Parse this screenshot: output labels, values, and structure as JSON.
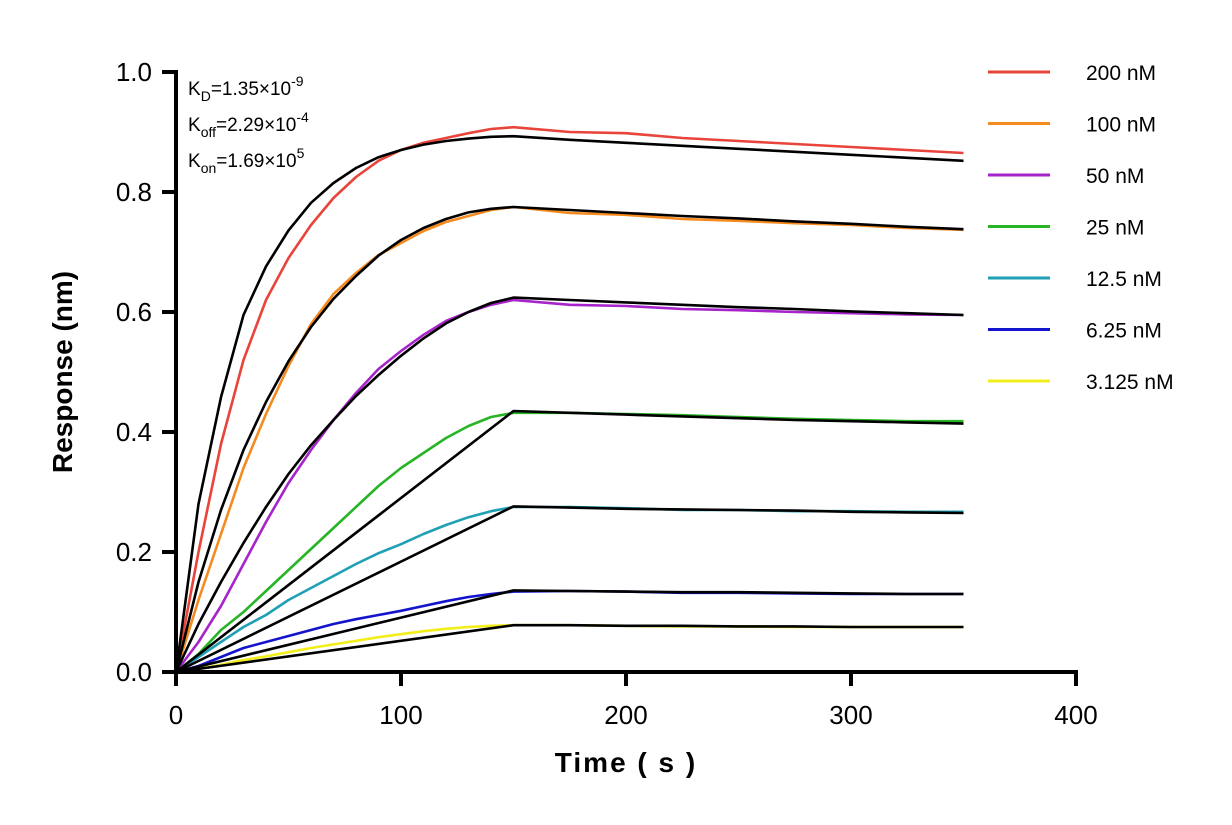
{
  "chart_data": {
    "type": "line",
    "title": "",
    "xlabel": "Time ( s )",
    "ylabel": "Response (nm)",
    "xlim": [
      0,
      400
    ],
    "ylim": [
      0,
      1.0
    ],
    "x_ticks": [
      0,
      100,
      200,
      300,
      400
    ],
    "x_tick_labels": [
      "0",
      "100",
      "200",
      "300",
      "400"
    ],
    "y_ticks": [
      0,
      0.2,
      0.4,
      0.6,
      0.8,
      1.0
    ],
    "y_tick_labels": [
      "0.0",
      "0.2",
      "0.4",
      "0.6",
      "0.8",
      "1.0"
    ],
    "grid": false,
    "legend_position": "right",
    "annotations": [
      {
        "base": "K",
        "sub": "D",
        "rest": "=1.35×10",
        "sup": "-9"
      },
      {
        "base": "K",
        "sub": "off",
        "rest": "=2.29×10",
        "sup": "-4"
      },
      {
        "base": "K",
        "sub": "on",
        "rest": "=1.69×10",
        "sup": "5"
      }
    ],
    "fit_color": "#000000",
    "fit_series": [
      {
        "x": [
          0,
          10,
          20,
          30,
          40,
          50,
          60,
          70,
          80,
          90,
          100,
          110,
          120,
          130,
          140,
          150,
          175,
          200,
          225,
          250,
          275,
          300,
          325,
          350
        ],
        "values": [
          0,
          0.28,
          0.458,
          0.595,
          0.676,
          0.736,
          0.782,
          0.815,
          0.84,
          0.858,
          0.87,
          0.879,
          0.885,
          0.889,
          0.892,
          0.893,
          0.887,
          0.882,
          0.877,
          0.872,
          0.867,
          0.862,
          0.857,
          0.852
        ]
      },
      {
        "x": [
          0,
          10,
          20,
          30,
          40,
          50,
          60,
          70,
          80,
          90,
          100,
          110,
          120,
          130,
          140,
          150,
          175,
          200,
          225,
          250,
          275,
          300,
          325,
          350
        ],
        "values": [
          0,
          0.15,
          0.27,
          0.37,
          0.45,
          0.518,
          0.575,
          0.622,
          0.66,
          0.694,
          0.72,
          0.74,
          0.755,
          0.766,
          0.772,
          0.775,
          0.77,
          0.765,
          0.76,
          0.756,
          0.751,
          0.747,
          0.742,
          0.738
        ]
      },
      {
        "x": [
          0,
          10,
          20,
          30,
          40,
          50,
          60,
          70,
          80,
          90,
          100,
          110,
          120,
          130,
          140,
          150,
          175,
          200,
          225,
          250,
          275,
          300,
          325,
          350
        ],
        "values": [
          0,
          0.08,
          0.15,
          0.215,
          0.275,
          0.33,
          0.378,
          0.42,
          0.46,
          0.495,
          0.527,
          0.556,
          0.581,
          0.6,
          0.615,
          0.624,
          0.62,
          0.616,
          0.612,
          0.608,
          0.605,
          0.601,
          0.598,
          0.595
        ]
      },
      {
        "x": [
          0,
          150,
          175,
          200,
          225,
          250,
          275,
          300,
          325,
          350
        ],
        "values": [
          0,
          0.435,
          0.432,
          0.429,
          0.426,
          0.423,
          0.42,
          0.418,
          0.416,
          0.414
        ]
      },
      {
        "x": [
          0,
          150,
          175,
          200,
          225,
          250,
          275,
          300,
          325,
          350
        ],
        "values": [
          0,
          0.276,
          0.274,
          0.272,
          0.271,
          0.27,
          0.269,
          0.267,
          0.266,
          0.265
        ]
      },
      {
        "x": [
          0,
          150,
          175,
          200,
          225,
          250,
          275,
          300,
          325,
          350
        ],
        "values": [
          0,
          0.136,
          0.135,
          0.134,
          0.133,
          0.133,
          0.132,
          0.131,
          0.13,
          0.13
        ]
      },
      {
        "x": [
          0,
          150,
          175,
          200,
          225,
          250,
          275,
          300,
          325,
          350
        ],
        "values": [
          0,
          0.078,
          0.078,
          0.077,
          0.077,
          0.076,
          0.076,
          0.075,
          0.075,
          0.075
        ]
      }
    ],
    "series": [
      {
        "name": "200 nM",
        "color": "#E8443A",
        "x": [
          0,
          10,
          20,
          30,
          40,
          50,
          60,
          70,
          80,
          90,
          100,
          110,
          120,
          130,
          140,
          150,
          175,
          200,
          225,
          250,
          275,
          300,
          325,
          350
        ],
        "values": [
          0,
          0.2,
          0.38,
          0.52,
          0.62,
          0.69,
          0.745,
          0.79,
          0.825,
          0.852,
          0.87,
          0.882,
          0.89,
          0.898,
          0.905,
          0.908,
          0.9,
          0.898,
          0.89,
          0.885,
          0.88,
          0.875,
          0.87,
          0.865
        ]
      },
      {
        "name": "100 nM",
        "color": "#F58A1F",
        "x": [
          0,
          10,
          20,
          30,
          40,
          50,
          60,
          70,
          80,
          90,
          100,
          110,
          120,
          130,
          140,
          150,
          175,
          200,
          225,
          250,
          275,
          300,
          325,
          350
        ],
        "values": [
          0,
          0.12,
          0.23,
          0.34,
          0.43,
          0.51,
          0.58,
          0.63,
          0.665,
          0.695,
          0.715,
          0.735,
          0.75,
          0.76,
          0.77,
          0.775,
          0.765,
          0.762,
          0.755,
          0.752,
          0.748,
          0.745,
          0.74,
          0.737
        ]
      },
      {
        "name": "50 nM",
        "color": "#A624C9",
        "x": [
          0,
          10,
          20,
          30,
          40,
          50,
          60,
          70,
          80,
          90,
          100,
          110,
          120,
          130,
          140,
          150,
          175,
          200,
          225,
          250,
          275,
          300,
          325,
          350
        ],
        "values": [
          0,
          0.05,
          0.11,
          0.18,
          0.25,
          0.315,
          0.37,
          0.42,
          0.465,
          0.505,
          0.535,
          0.562,
          0.585,
          0.6,
          0.612,
          0.62,
          0.612,
          0.61,
          0.605,
          0.603,
          0.6,
          0.598,
          0.596,
          0.595
        ]
      },
      {
        "name": "25 nM",
        "color": "#27B527",
        "x": [
          0,
          10,
          20,
          30,
          40,
          50,
          60,
          70,
          80,
          90,
          100,
          110,
          120,
          130,
          140,
          150,
          175,
          200,
          225,
          250,
          275,
          300,
          325,
          350
        ],
        "values": [
          0,
          0.03,
          0.07,
          0.1,
          0.135,
          0.17,
          0.205,
          0.24,
          0.275,
          0.31,
          0.34,
          0.365,
          0.39,
          0.41,
          0.425,
          0.432,
          0.432,
          0.43,
          0.428,
          0.425,
          0.422,
          0.42,
          0.418,
          0.418
        ]
      },
      {
        "name": "12.5 nM",
        "color": "#1FA0B4",
        "x": [
          0,
          10,
          20,
          30,
          40,
          50,
          60,
          70,
          80,
          90,
          100,
          110,
          120,
          130,
          140,
          150,
          175,
          200,
          225,
          250,
          275,
          300,
          325,
          350
        ],
        "values": [
          0,
          0.025,
          0.05,
          0.075,
          0.095,
          0.12,
          0.14,
          0.16,
          0.18,
          0.198,
          0.213,
          0.23,
          0.245,
          0.258,
          0.268,
          0.275,
          0.275,
          0.273,
          0.27,
          0.27,
          0.268,
          0.268,
          0.267,
          0.267
        ]
      },
      {
        "name": "6.25 nM",
        "color": "#1414CC",
        "x": [
          0,
          10,
          20,
          30,
          40,
          50,
          60,
          70,
          80,
          90,
          100,
          110,
          120,
          130,
          140,
          150,
          175,
          200,
          225,
          250,
          275,
          300,
          325,
          350
        ],
        "values": [
          0,
          0.01,
          0.025,
          0.04,
          0.05,
          0.06,
          0.07,
          0.08,
          0.088,
          0.095,
          0.102,
          0.11,
          0.118,
          0.125,
          0.13,
          0.134,
          0.135,
          0.134,
          0.132,
          0.132,
          0.131,
          0.13,
          0.13,
          0.13
        ]
      },
      {
        "name": "3.125 nM",
        "color": "#F2EE1A",
        "x": [
          0,
          10,
          20,
          30,
          40,
          50,
          60,
          70,
          80,
          90,
          100,
          110,
          120,
          130,
          140,
          150,
          175,
          200,
          225,
          250,
          275,
          300,
          325,
          350
        ],
        "values": [
          0,
          0.005,
          0.012,
          0.02,
          0.026,
          0.033,
          0.04,
          0.046,
          0.052,
          0.058,
          0.063,
          0.068,
          0.072,
          0.075,
          0.077,
          0.078,
          0.078,
          0.077,
          0.076,
          0.076,
          0.075,
          0.075,
          0.075,
          0.075
        ]
      }
    ]
  }
}
